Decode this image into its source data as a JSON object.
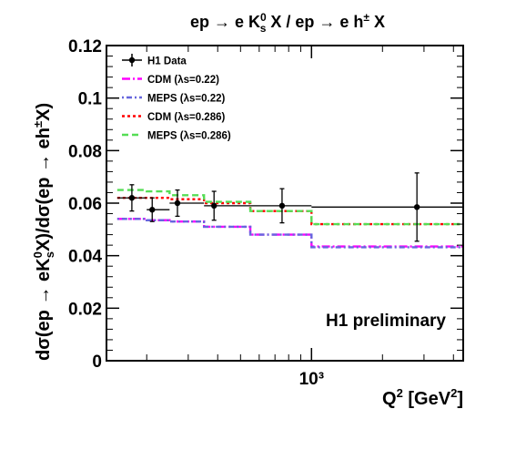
{
  "chart_data": {
    "type": "line",
    "title": "ep → e K⁰ₛ X / ep → e h± X",
    "xlabel": "Q² [GeV²]",
    "ylabel": "dσ(ep → eK⁰ₛX)/dσ(ep → eh±X)",
    "xscale": "log",
    "xlim": [
      135,
      4400
    ],
    "ylim": [
      0,
      0.12
    ],
    "yticks": [
      "0",
      "0.02",
      "0.04",
      "0.06",
      "0.08",
      "0.1",
      "0.12"
    ],
    "xticks": [
      {
        "value": 1000,
        "label": "10³"
      }
    ],
    "legend_position": "top-left",
    "annotation": "H1 preliminary",
    "bins": [
      [
        150,
        200
      ],
      [
        200,
        250
      ],
      [
        250,
        350
      ],
      [
        350,
        550
      ],
      [
        550,
        1000
      ],
      [
        1000,
        4400
      ]
    ],
    "series": [
      {
        "name": "H1 Data",
        "kind": "points",
        "color": "#000000",
        "x": [
          173,
          211,
          270,
          386,
          750,
          2800
        ],
        "y": [
          0.062,
          0.0575,
          0.06,
          0.059,
          0.059,
          0.0585
        ],
        "yerr": [
          0.005,
          0.0045,
          0.005,
          0.0055,
          0.0065,
          0.013
        ]
      },
      {
        "name": "CDM (λs=0.22)",
        "kind": "step",
        "color": "#ff00ff",
        "dash": "9,3,2,3",
        "values": [
          0.054,
          0.0535,
          0.053,
          0.051,
          0.048,
          0.0435
        ]
      },
      {
        "name": "MEPS (λs=0.22)",
        "kind": "step",
        "color": "#6666dd",
        "dash": "2,3,6,3",
        "values": [
          0.054,
          0.0535,
          0.053,
          0.051,
          0.048,
          0.0432
        ]
      },
      {
        "name": "CDM (λs=0.286)",
        "kind": "step",
        "color": "#ff0000",
        "dash": "3,3",
        "values": [
          0.062,
          0.062,
          0.0615,
          0.06,
          0.057,
          0.052
        ]
      },
      {
        "name": "MEPS (λs=0.286)",
        "kind": "step",
        "color": "#55dd55",
        "dash": "7,4",
        "values": [
          0.065,
          0.0645,
          0.063,
          0.0605,
          0.057,
          0.052
        ]
      }
    ]
  }
}
